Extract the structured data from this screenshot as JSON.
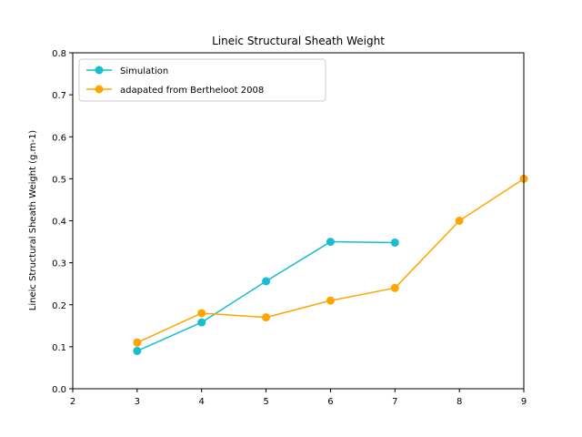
{
  "chart_data": {
    "type": "line",
    "title": "Lineic Structural Sheath Weight",
    "xlabel": "",
    "ylabel": "Lineic Structural Sheath Weight (g.m-1)",
    "xlim": [
      2,
      9
    ],
    "ylim": [
      0.0,
      0.8
    ],
    "xticks": [
      "2",
      "3",
      "4",
      "5",
      "6",
      "7",
      "8",
      "9"
    ],
    "yticks": [
      "0.0",
      "0.1",
      "0.2",
      "0.3",
      "0.4",
      "0.5",
      "0.6",
      "0.7",
      "0.8"
    ],
    "grid": false,
    "legend_position": "top-left",
    "series": [
      {
        "name": "Simulation",
        "color": "#17becf",
        "marker": "circle",
        "x": [
          3,
          4,
          5,
          6,
          7
        ],
        "y": [
          0.09,
          0.158,
          0.256,
          0.35,
          0.348
        ]
      },
      {
        "name": "adapated from Bertheloot 2008",
        "color": "#ffa500",
        "marker": "circle",
        "x": [
          3,
          4,
          5,
          6,
          7,
          8,
          9
        ],
        "y": [
          0.11,
          0.18,
          0.17,
          0.21,
          0.24,
          0.4,
          0.5
        ]
      }
    ]
  }
}
